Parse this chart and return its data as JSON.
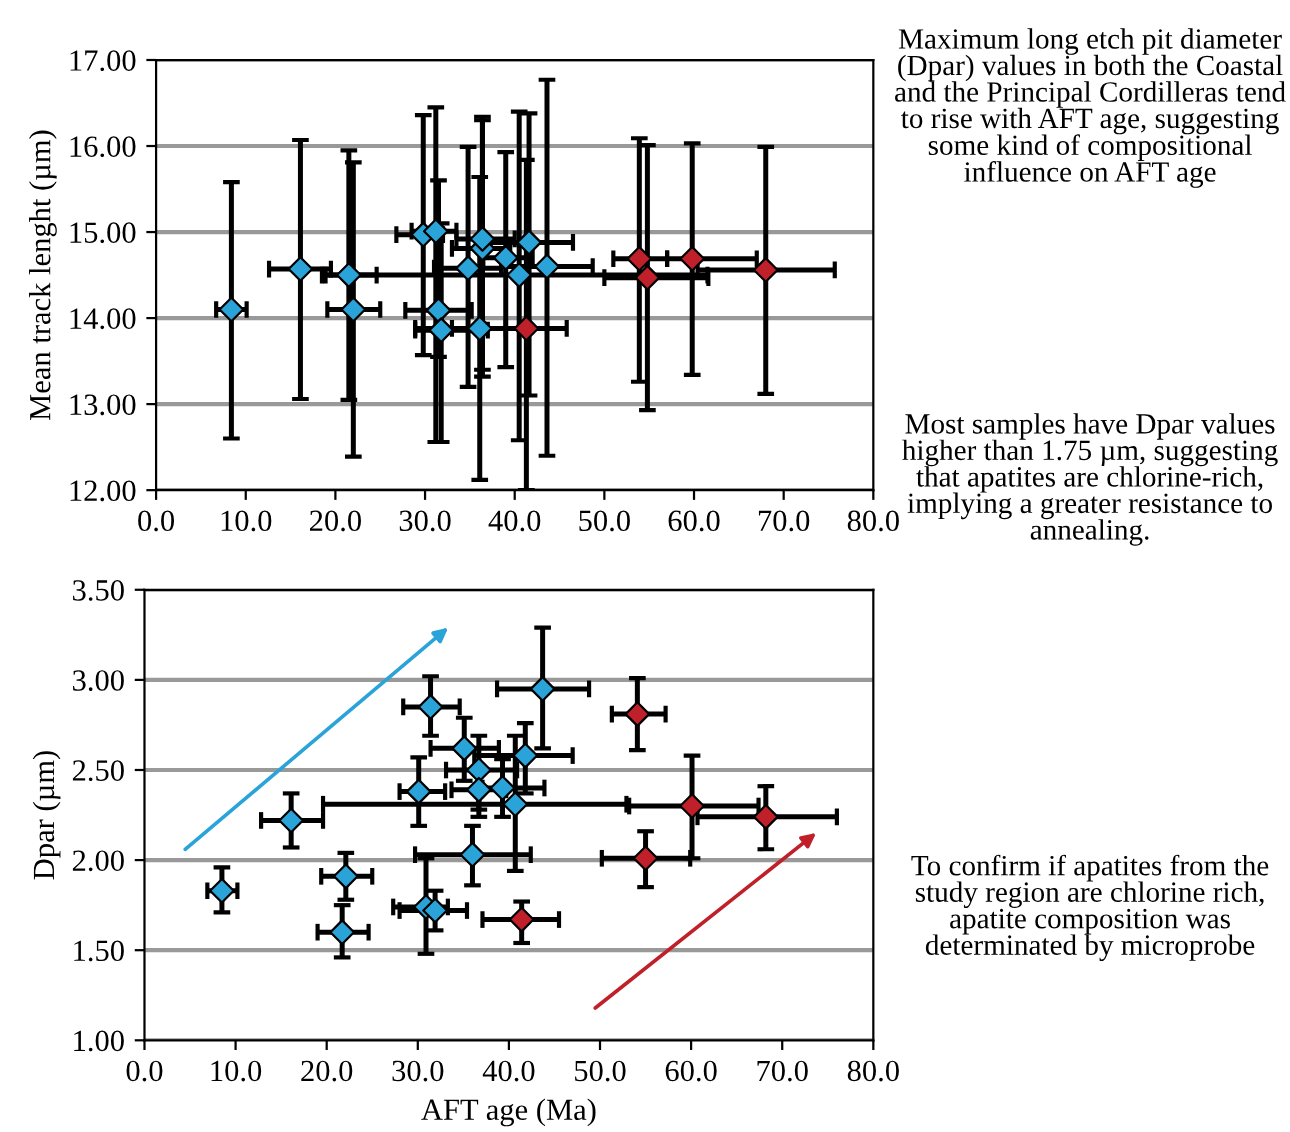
{
  "chart_data": [
    {
      "type": "scatter",
      "ylabel": "Mean track lenght (µm)",
      "xlim": [
        0,
        80
      ],
      "ylim": [
        12,
        17
      ],
      "xticks": [
        {
          "value": 0,
          "label": "0.0"
        },
        {
          "value": 10,
          "label": "10.0"
        },
        {
          "value": 20,
          "label": "20.0"
        },
        {
          "value": 30,
          "label": "30.0"
        },
        {
          "value": 40,
          "label": "40.0"
        },
        {
          "value": 50,
          "label": "50.0"
        },
        {
          "value": 60,
          "label": "60.0"
        },
        {
          "value": 70,
          "label": "70.0"
        },
        {
          "value": 80,
          "label": "80.0"
        }
      ],
      "yticks": [
        {
          "value": 12,
          "label": "12.00"
        },
        {
          "value": 13,
          "label": "13.00"
        },
        {
          "value": 14,
          "label": "14.00"
        },
        {
          "value": 15,
          "label": "15.00"
        },
        {
          "value": 16,
          "label": "16.00"
        },
        {
          "value": 17,
          "label": "17.00"
        }
      ],
      "grid": "y",
      "marker": "diamond",
      "legend": false,
      "series": [
        {
          "color": "#2aa3d8",
          "x": [
            8.4,
            16.1,
            21.5,
            22.0,
            29.8,
            31.2,
            31.5,
            31.8,
            34.8,
            36.4,
            36.4,
            36.1,
            39.0,
            40.5,
            41.6,
            43.6
          ],
          "values": [
            14.1,
            14.57,
            14.5,
            14.1,
            14.97,
            15.01,
            14.09,
            13.86,
            14.58,
            14.81,
            14.92,
            13.88,
            14.7,
            14.5,
            14.88,
            14.6
          ],
          "errors": [
            [
              12.6,
              15.58
            ],
            [
              13.06,
              16.07
            ],
            [
              13.05,
              15.95
            ],
            [
              12.39,
              15.81
            ],
            [
              13.57,
              16.36
            ],
            [
              12.56,
              16.45
            ],
            [
              13.55,
              15.6
            ],
            [
              12.56,
              15.1
            ],
            [
              13.2,
              15.99
            ],
            [
              13.32,
              16.34
            ],
            [
              13.4,
              16.3
            ],
            [
              12.12,
              15.64
            ],
            [
              13.43,
              15.93
            ],
            [
              12.58,
              16.4
            ],
            [
              13.1,
              16.38
            ],
            [
              12.4,
              16.77
            ]
          ],
          "xerrors": [
            [
              6.7,
              10.1
            ],
            [
              12.6,
              19.5
            ],
            [
              18.9,
              24.6
            ],
            [
              19.1,
              25.0
            ],
            [
              26.8,
              32.0
            ],
            [
              28.5,
              33.5
            ],
            [
              27.8,
              35.2
            ],
            [
              28.9,
              37.0
            ],
            [
              31.0,
              38.5
            ],
            [
              33.0,
              39.5
            ],
            [
              33.5,
              40.0
            ],
            [
              33.0,
              39.0
            ],
            [
              36.5,
              42.0
            ],
            [
              18.5,
              61.5
            ],
            [
              37.0,
              46.5
            ],
            [
              38.5,
              48.7
            ]
          ]
        },
        {
          "color": "#c0202a",
          "x": [
            41.3,
            53.9,
            54.8,
            59.8,
            68.0
          ],
          "values": [
            13.88,
            14.69,
            14.47,
            14.69,
            14.56
          ],
          "errors": [
            [
              12.0,
              15.84
            ],
            [
              13.26,
              16.09
            ],
            [
              12.93,
              16.01
            ],
            [
              13.34,
              16.03
            ],
            [
              13.12,
              15.99
            ]
          ],
          "xerrors": [
            [
              28.9,
              45.8
            ],
            [
              51.0,
              57.0
            ],
            [
              50.0,
              61.6
            ],
            [
              57.0,
              67.0
            ],
            [
              60.4,
              75.7
            ]
          ]
        }
      ]
    },
    {
      "type": "scatter",
      "xlabel": "AFT age (Ma)",
      "ylabel": "Dpar (µm)",
      "xlim": [
        0,
        80
      ],
      "ylim": [
        1,
        3.5
      ],
      "xticks": [
        {
          "value": 0,
          "label": "0.0"
        },
        {
          "value": 10,
          "label": "10.0"
        },
        {
          "value": 20,
          "label": "20.0"
        },
        {
          "value": 30,
          "label": "30.0"
        },
        {
          "value": 40,
          "label": "40.0"
        },
        {
          "value": 50,
          "label": "50.0"
        },
        {
          "value": 60,
          "label": "60.0"
        },
        {
          "value": 70,
          "label": "70.0"
        },
        {
          "value": 80,
          "label": "80.0"
        }
      ],
      "yticks": [
        {
          "value": 1,
          "label": "1.00"
        },
        {
          "value": 1.5,
          "label": "1.50"
        },
        {
          "value": 2,
          "label": "2.00"
        },
        {
          "value": 2.5,
          "label": "2.50"
        },
        {
          "value": 3,
          "label": "3.00"
        },
        {
          "value": 3.5,
          "label": "3.50"
        }
      ],
      "grid": "y",
      "marker": "diamond",
      "legend": false,
      "series": [
        {
          "color": "#2aa3d8",
          "x": [
            8.5,
            16.1,
            22.1,
            21.7,
            30.1,
            31.4,
            30.9,
            31.9,
            35.1,
            36.7,
            36.7,
            39.3,
            40.7,
            41.8,
            43.7,
            36.0
          ],
          "values": [
            1.83,
            2.22,
            1.91,
            1.6,
            2.38,
            2.85,
            1.74,
            1.72,
            2.62,
            2.5,
            2.39,
            2.4,
            2.31,
            2.58,
            2.95,
            2.03
          ],
          "errors": [
            [
              1.71,
              1.96
            ],
            [
              2.07,
              2.37
            ],
            [
              1.78,
              2.04
            ],
            [
              1.46,
              1.75
            ],
            [
              2.19,
              2.57
            ],
            [
              2.69,
              3.02
            ],
            [
              1.48,
              2.01
            ],
            [
              1.61,
              1.83
            ],
            [
              2.44,
              2.79
            ],
            [
              2.24,
              2.69
            ],
            [
              2.28,
              2.5
            ],
            [
              2.24,
              2.56
            ],
            [
              1.94,
              2.69
            ],
            [
              2.37,
              2.76
            ],
            [
              2.62,
              3.29
            ],
            [
              1.86,
              2.19
            ]
          ],
          "xerrors": [
            [
              6.9,
              10.2
            ],
            [
              12.8,
              19.6
            ],
            [
              19.4,
              25.0
            ],
            [
              19.0,
              24.6
            ],
            [
              28.0,
              33.0
            ],
            [
              28.4,
              34.6
            ],
            [
              27.3,
              33.3
            ],
            [
              28.0,
              35.4
            ],
            [
              31.4,
              38.9
            ],
            [
              33.1,
              40.9
            ],
            [
              33.7,
              39.7
            ],
            [
              37.1,
              43.9
            ],
            [
              19.6,
              52.9
            ],
            [
              36.2,
              47.0
            ],
            [
              38.7,
              48.8
            ],
            [
              29.7,
              42.4
            ]
          ]
        },
        {
          "color": "#c0202a",
          "x": [
            41.4,
            54.1,
            55.0,
            60.1,
            68.2
          ],
          "values": [
            1.67,
            2.81,
            2.01,
            2.3,
            2.24
          ],
          "errors": [
            [
              1.54,
              1.77
            ],
            [
              2.61,
              3.01
            ],
            [
              1.85,
              2.16
            ],
            [
              2.01,
              2.58
            ],
            [
              2.06,
              2.41
            ]
          ],
          "xerrors": [
            [
              37.1,
              45.5
            ],
            [
              51.3,
              57.2
            ],
            [
              50.2,
              59.9
            ],
            [
              53.2,
              67.4
            ],
            [
              60.7,
              76.0
            ]
          ]
        }
      ]
    },
    {
      "type": "other",
      "annotations": [
        "Maximum long etch pit diameter (Dpar) values in both the Coastal and the Principal Cordilleras tend to rise with AFT age, suggesting some kind of compositional influence on AFT age",
        "Most samples have Dpar values higher than 1.75 µm, suggesting that apatites are chlorine-rich, implying a greater resistance to annealing.",
        "To confirm if apatites from the study region are chlorine rich, apatite composition was determinated by microprobe"
      ]
    }
  ]
}
